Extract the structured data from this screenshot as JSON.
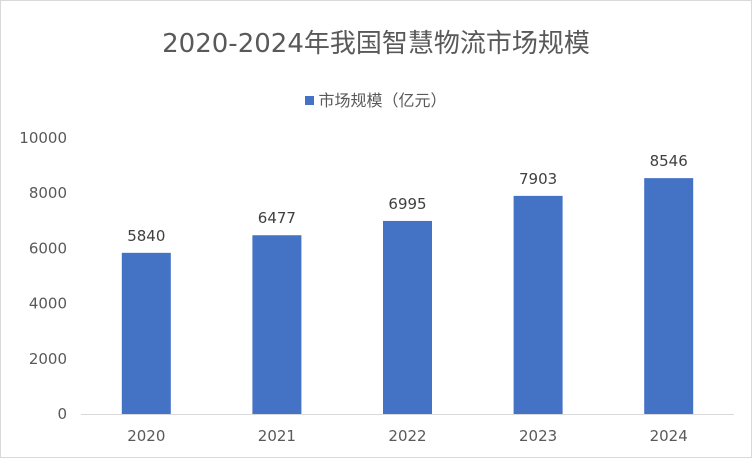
{
  "chart_data": {
    "type": "bar",
    "title": "2020-2024年我国智慧物流市场规模",
    "categories": [
      "2020",
      "2021",
      "2022",
      "2023",
      "2024"
    ],
    "series": [
      {
        "name": "市场规模（亿元）",
        "values": [
          5840,
          6477,
          6995,
          7903,
          8546
        ],
        "color": "#4472c4"
      }
    ],
    "ylim": [
      0,
      10000
    ],
    "yticks": [
      0,
      2000,
      4000,
      6000,
      8000,
      10000
    ],
    "grid": false,
    "legend_position": "top"
  }
}
